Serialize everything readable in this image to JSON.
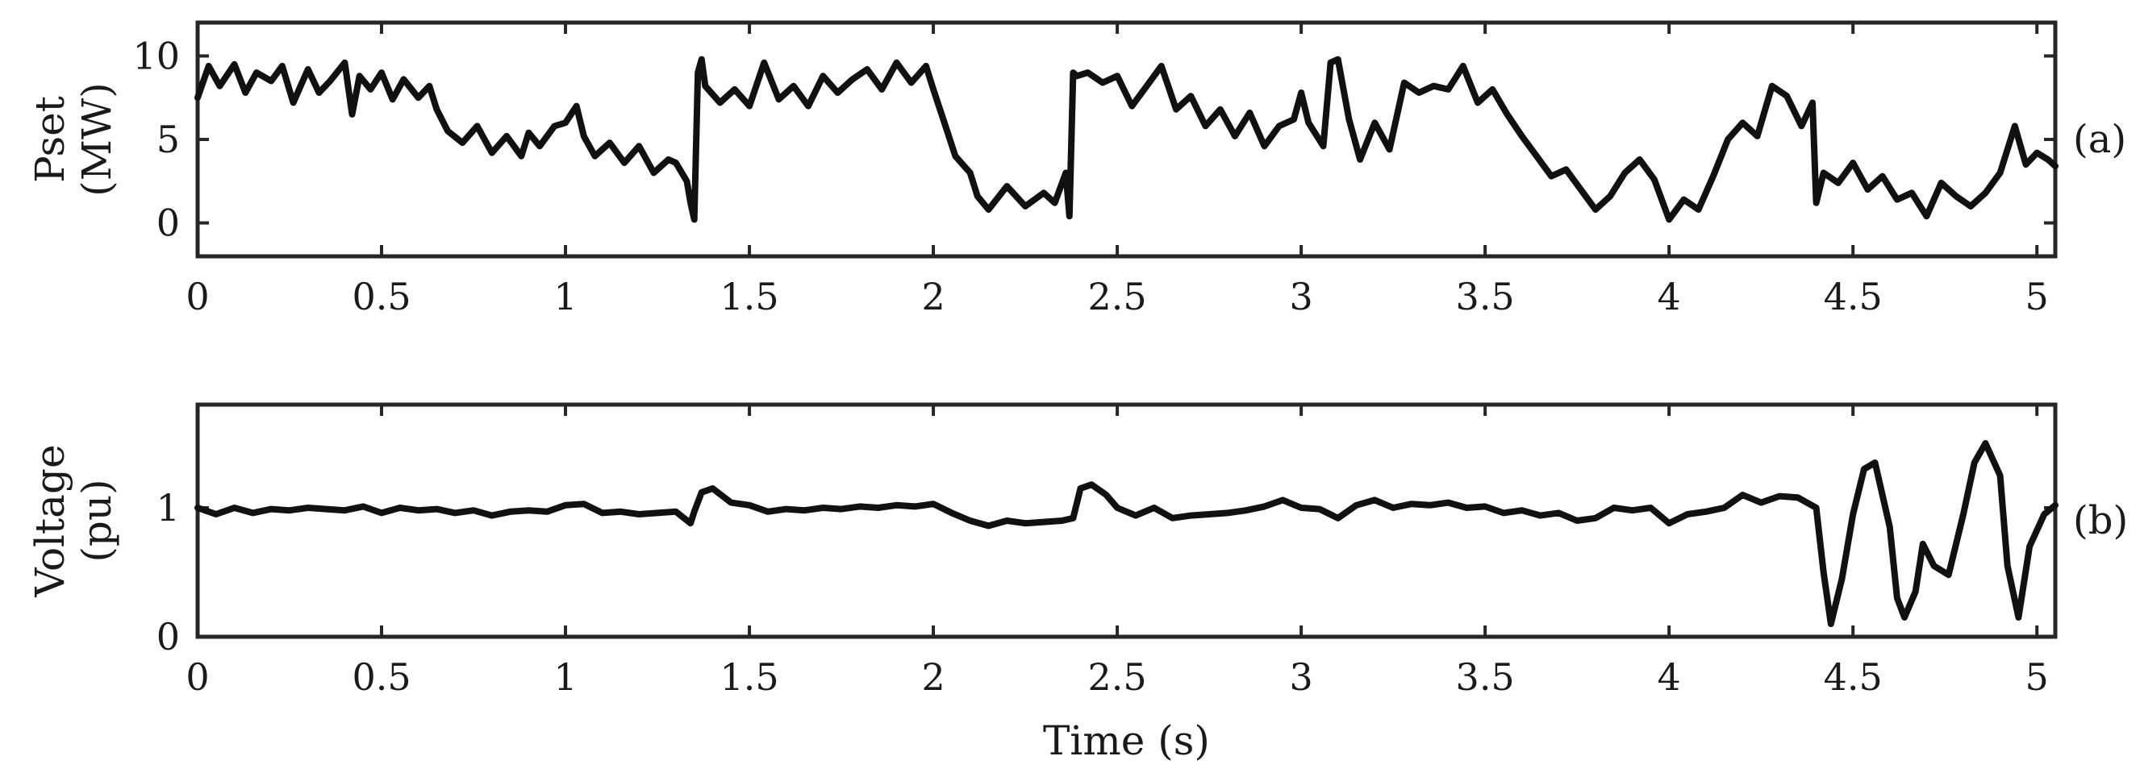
{
  "chart_data": [
    {
      "type": "line",
      "panel_label": "(a)",
      "ylabel_lines": [
        "Pset",
        "(MW)"
      ],
      "xlabel": "",
      "xlim": [
        0,
        5.05
      ],
      "ylim": [
        -2,
        12
      ],
      "xticks": [
        0,
        0.5,
        1,
        1.5,
        2,
        2.5,
        3,
        3.5,
        4,
        4.5,
        5
      ],
      "xtick_labels": [
        "0",
        "0.5",
        "1",
        "1.5",
        "2",
        "2.5",
        "3",
        "3.5",
        "4",
        "4.5",
        "5"
      ],
      "yticks": [
        0,
        5,
        10
      ],
      "ytick_labels": [
        "0",
        "5",
        "10"
      ],
      "grid": false,
      "series": [
        {
          "color": "#111111",
          "x": [
            0,
            0.03,
            0.06,
            0.1,
            0.13,
            0.16,
            0.2,
            0.23,
            0.26,
            0.3,
            0.33,
            0.36,
            0.4,
            0.42,
            0.44,
            0.47,
            0.5,
            0.53,
            0.56,
            0.6,
            0.63,
            0.65,
            0.68,
            0.72,
            0.76,
            0.8,
            0.84,
            0.88,
            0.9,
            0.93,
            0.97,
            1.0,
            1.03,
            1.05,
            1.08,
            1.12,
            1.16,
            1.2,
            1.24,
            1.28,
            1.3,
            1.33,
            1.34,
            1.35,
            1.36,
            1.37,
            1.38,
            1.42,
            1.46,
            1.5,
            1.54,
            1.58,
            1.62,
            1.66,
            1.7,
            1.74,
            1.78,
            1.82,
            1.86,
            1.9,
            1.94,
            1.98,
            2.0,
            2.03,
            2.06,
            2.08,
            2.1,
            2.12,
            2.15,
            2.2,
            2.25,
            2.3,
            2.33,
            2.36,
            2.37,
            2.38,
            2.39,
            2.42,
            2.46,
            2.5,
            2.54,
            2.58,
            2.62,
            2.66,
            2.7,
            2.74,
            2.78,
            2.82,
            2.86,
            2.9,
            2.94,
            2.98,
            3.0,
            3.02,
            3.06,
            3.08,
            3.1,
            3.13,
            3.16,
            3.2,
            3.24,
            3.28,
            3.32,
            3.36,
            3.4,
            3.44,
            3.48,
            3.52,
            3.56,
            3.6,
            3.64,
            3.68,
            3.72,
            3.76,
            3.8,
            3.84,
            3.88,
            3.92,
            3.96,
            4.0,
            4.04,
            4.08,
            4.12,
            4.16,
            4.2,
            4.24,
            4.28,
            4.32,
            4.36,
            4.39,
            4.4,
            4.42,
            4.46,
            4.5,
            4.54,
            4.58,
            4.62,
            4.66,
            4.7,
            4.74,
            4.78,
            4.82,
            4.86,
            4.9,
            4.94,
            4.97,
            5.0,
            5.03,
            5.05
          ],
          "values": [
            7.5,
            9.4,
            8.2,
            9.5,
            7.8,
            9.0,
            8.5,
            9.4,
            7.2,
            9.2,
            7.8,
            8.5,
            9.6,
            6.5,
            8.8,
            8.0,
            9.0,
            7.4,
            8.6,
            7.5,
            8.2,
            6.8,
            5.5,
            4.8,
            5.8,
            4.2,
            5.2,
            4.0,
            5.4,
            4.6,
            5.8,
            6.0,
            7.0,
            5.2,
            4.0,
            4.8,
            3.6,
            4.6,
            3.0,
            3.8,
            3.6,
            2.5,
            1.2,
            0.2,
            9.0,
            9.8,
            8.2,
            7.2,
            8.0,
            7.0,
            9.6,
            7.4,
            8.2,
            7.0,
            8.8,
            7.8,
            8.6,
            9.2,
            8.0,
            9.6,
            8.4,
            9.4,
            8.0,
            6.0,
            4.0,
            3.5,
            3.0,
            1.6,
            0.8,
            2.2,
            1.0,
            1.8,
            1.2,
            3.0,
            0.4,
            9.0,
            8.8,
            9.0,
            8.4,
            8.8,
            7.0,
            8.2,
            9.4,
            6.8,
            7.6,
            5.8,
            6.8,
            5.2,
            6.6,
            4.6,
            5.8,
            6.2,
            7.8,
            6.0,
            4.6,
            9.6,
            9.8,
            6.2,
            3.8,
            6.0,
            4.4,
            8.4,
            7.8,
            8.2,
            8.0,
            9.4,
            7.2,
            8.0,
            6.5,
            5.2,
            4.0,
            2.8,
            3.2,
            2.0,
            0.8,
            1.6,
            3.0,
            3.8,
            2.6,
            0.2,
            1.4,
            0.8,
            2.8,
            5.0,
            6.0,
            5.2,
            8.2,
            7.6,
            5.8,
            7.2,
            1.2,
            3.0,
            2.4,
            3.6,
            2.0,
            2.8,
            1.4,
            1.8,
            0.4,
            2.4,
            1.6,
            1.0,
            1.8,
            3.0,
            5.8,
            3.5,
            4.2,
            3.8,
            3.4
          ]
        }
      ]
    },
    {
      "type": "line",
      "panel_label": "(b)",
      "ylabel_lines": [
        "Voltage",
        "(pu)"
      ],
      "xlabel": "Time (s)",
      "xlim": [
        0,
        5.05
      ],
      "ylim": [
        0,
        1.8
      ],
      "xticks": [
        0,
        0.5,
        1,
        1.5,
        2,
        2.5,
        3,
        3.5,
        4,
        4.5,
        5
      ],
      "xtick_labels": [
        "0",
        "0.5",
        "1",
        "1.5",
        "2",
        "2.5",
        "3",
        "3.5",
        "4",
        "4.5",
        "5"
      ],
      "yticks": [
        0,
        1
      ],
      "ytick_labels": [
        "0",
        "1"
      ],
      "grid": false,
      "series": [
        {
          "color": "#111111",
          "x": [
            0,
            0.05,
            0.1,
            0.15,
            0.2,
            0.25,
            0.3,
            0.35,
            0.4,
            0.45,
            0.5,
            0.55,
            0.6,
            0.65,
            0.7,
            0.75,
            0.8,
            0.85,
            0.9,
            0.95,
            1.0,
            1.05,
            1.1,
            1.15,
            1.2,
            1.25,
            1.3,
            1.34,
            1.35,
            1.37,
            1.4,
            1.45,
            1.5,
            1.55,
            1.6,
            1.65,
            1.7,
            1.75,
            1.8,
            1.85,
            1.9,
            1.95,
            2.0,
            2.05,
            2.1,
            2.15,
            2.2,
            2.25,
            2.3,
            2.35,
            2.38,
            2.4,
            2.43,
            2.47,
            2.5,
            2.55,
            2.6,
            2.65,
            2.7,
            2.75,
            2.8,
            2.85,
            2.9,
            2.95,
            3.0,
            3.05,
            3.1,
            3.15,
            3.2,
            3.25,
            3.3,
            3.35,
            3.4,
            3.45,
            3.5,
            3.55,
            3.6,
            3.65,
            3.7,
            3.75,
            3.8,
            3.85,
            3.9,
            3.95,
            4.0,
            4.05,
            4.1,
            4.15,
            4.2,
            4.25,
            4.3,
            4.35,
            4.4,
            4.42,
            4.44,
            4.47,
            4.5,
            4.53,
            4.56,
            4.6,
            4.62,
            4.64,
            4.67,
            4.69,
            4.72,
            4.76,
            4.8,
            4.83,
            4.86,
            4.9,
            4.92,
            4.95,
            4.98,
            5.02,
            5.05
          ],
          "values": [
            1.0,
            0.95,
            1.0,
            0.96,
            0.99,
            0.98,
            1.0,
            0.99,
            0.98,
            1.01,
            0.96,
            1.0,
            0.98,
            0.99,
            0.96,
            0.98,
            0.94,
            0.97,
            0.98,
            0.97,
            1.02,
            1.03,
            0.96,
            0.97,
            0.95,
            0.96,
            0.97,
            0.88,
            0.97,
            1.12,
            1.15,
            1.04,
            1.02,
            0.97,
            0.99,
            0.98,
            1.0,
            0.99,
            1.01,
            1.0,
            1.02,
            1.01,
            1.03,
            0.96,
            0.9,
            0.86,
            0.9,
            0.88,
            0.89,
            0.9,
            0.92,
            1.15,
            1.18,
            1.1,
            1.0,
            0.94,
            1.0,
            0.92,
            0.94,
            0.95,
            0.96,
            0.98,
            1.01,
            1.06,
            1.0,
            0.99,
            0.92,
            1.02,
            1.06,
            1.0,
            1.03,
            1.02,
            1.04,
            1.0,
            1.01,
            0.96,
            0.98,
            0.94,
            0.96,
            0.9,
            0.92,
            1.0,
            0.98,
            1.0,
            0.88,
            0.95,
            0.97,
            1.0,
            1.1,
            1.04,
            1.09,
            1.08,
            1.0,
            0.5,
            0.1,
            0.45,
            0.95,
            1.3,
            1.35,
            0.85,
            0.3,
            0.15,
            0.35,
            0.72,
            0.55,
            0.48,
            0.95,
            1.35,
            1.5,
            1.25,
            0.55,
            0.15,
            0.7,
            0.95,
            1.02
          ]
        }
      ]
    }
  ]
}
